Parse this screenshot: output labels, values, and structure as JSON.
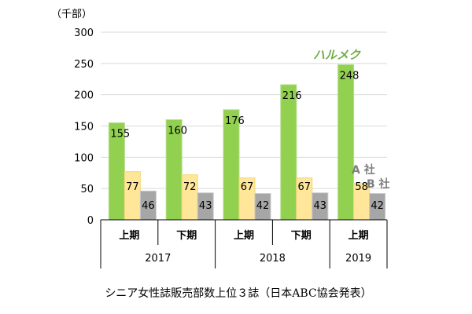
{
  "chart_data": {
    "type": "bar",
    "unit": "（千部）",
    "caption": "シニア女性誌販売部数上位３誌（日本ABC協会発表）",
    "ylim": [
      0,
      300
    ],
    "yticks": [
      "0",
      "50",
      "100",
      "150",
      "200",
      "250",
      "300"
    ],
    "grid": true,
    "categories": [
      "上期",
      "下期",
      "上期",
      "下期",
      "上期"
    ],
    "years": [
      {
        "label": "2017",
        "span": 2
      },
      {
        "label": "2018",
        "span": 2
      },
      {
        "label": "2019",
        "span": 1
      }
    ],
    "series": [
      {
        "name": "ハルメク",
        "color": "#92d050",
        "values": [
          155,
          160,
          176,
          216,
          248
        ]
      },
      {
        "name": "A 社",
        "color": "#ffe699",
        "values": [
          77,
          72,
          67,
          67,
          58
        ]
      },
      {
        "name": "B 社",
        "color": "#a6a6a6",
        "values": [
          46,
          43,
          42,
          43,
          42
        ]
      }
    ],
    "label_colors": {
      "ハルメク": "#70ad47",
      "A 社": "#7f7f7f",
      "B 社": "#7f7f7f"
    }
  }
}
